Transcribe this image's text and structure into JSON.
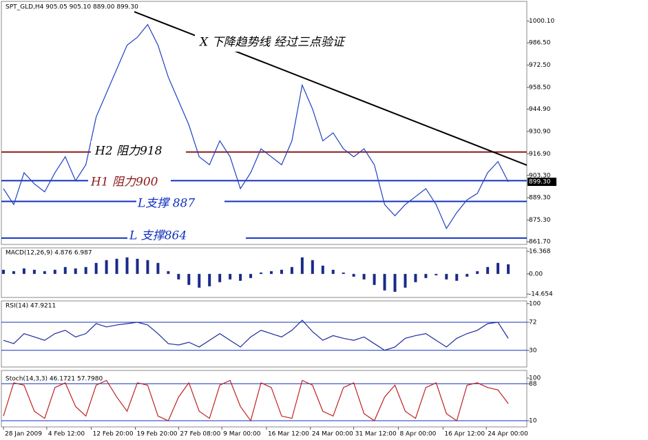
{
  "chart_data": [
    {
      "type": "line",
      "title": "SPT_GLD,H4  905.05 905.10 889.00 899.30",
      "x": [
        0,
        1,
        2,
        3,
        4,
        5,
        6,
        7,
        8,
        9,
        10,
        11,
        12,
        13,
        14,
        15,
        16,
        17,
        18,
        19,
        20,
        21,
        22,
        23,
        24,
        25,
        26,
        27,
        28,
        29,
        30,
        31,
        32,
        33,
        34,
        35,
        36,
        37,
        38,
        39,
        40,
        41,
        42,
        43,
        44,
        45,
        46,
        47,
        48,
        49
      ],
      "series": [
        {
          "color": "#2040c0",
          "values": [
            895,
            885,
            905,
            898,
            893,
            905,
            915,
            900,
            910,
            940,
            955,
            970,
            985,
            990,
            998,
            985,
            965,
            950,
            935,
            915,
            910,
            925,
            915,
            895,
            905,
            920,
            915,
            910,
            925,
            960,
            945,
            925,
            930,
            920,
            915,
            920,
            910,
            885,
            878,
            885,
            890,
            895,
            885,
            870,
            880,
            888,
            892,
            905,
            912,
            899.3
          ]
        }
      ],
      "xlim": [
        -0.2,
        50.8
      ],
      "ylim": [
        860,
        1012.5
      ],
      "yticks": [
        {
          "value": 1000.1,
          "label": "1000.10"
        },
        {
          "value": 986.5,
          "label": "986.50"
        },
        {
          "value": 972.5,
          "label": "972.50"
        },
        {
          "value": 958.5,
          "label": "958.50"
        },
        {
          "value": 944.9,
          "label": "944.90"
        },
        {
          "value": 930.9,
          "label": "930.90"
        },
        {
          "value": 916.9,
          "label": "916.90"
        },
        {
          "value": 903.3,
          "label": "903.30"
        },
        {
          "value": 889.3,
          "label": "889.30"
        },
        {
          "value": 875.3,
          "label": "875.30"
        },
        {
          "value": 861.7,
          "label": "861.70"
        }
      ],
      "xticks": [
        {
          "value": 0,
          "label": "28 Jan 2009"
        },
        {
          "value": 4.2,
          "label": "4 Feb 12:00"
        },
        {
          "value": 8.53,
          "label": "12 Feb 20:00"
        },
        {
          "value": 12.8,
          "label": "19 Feb 20:00"
        },
        {
          "value": 17,
          "label": "27 Feb 08:00"
        },
        {
          "value": 21.2,
          "label": "9 Mar 00:00"
        },
        {
          "value": 25.53,
          "label": "16 Mar 12:00"
        },
        {
          "value": 29.8,
          "label": "24 Mar 00:00"
        },
        {
          "value": 34,
          "label": "31 Mar 12:00"
        },
        {
          "value": 38.33,
          "label": "8 Apr 00:00"
        },
        {
          "value": 42.67,
          "label": "16 Apr 12:00"
        },
        {
          "value": 46.87,
          "label": "24 Apr 00:00"
        }
      ],
      "last_price": {
        "value": 899.3,
        "label": "899.30"
      },
      "levels": [
        {
          "value": 918,
          "color": "#8b1a1a"
        },
        {
          "value": 900,
          "color": "#1030c0"
        },
        {
          "value": 887,
          "color": "#1030c0"
        },
        {
          "value": 864,
          "color": "#1030c0"
        }
      ],
      "trendline": {
        "x": [
          12.7,
          51.5
        ],
        "y": [
          1006,
          908
        ],
        "color": "#000000"
      },
      "annotations": [
        "X  下降趋势线  经过三点验证",
        "H2  阻力918",
        "H1  阻力900",
        "L支撑  887",
        "L  支撑864"
      ]
    },
    {
      "type": "bar",
      "title": "MACD(12,26,9) 4.876 6.987",
      "color": "#1a2a8a",
      "values": [
        3,
        2,
        4,
        3,
        2,
        3,
        5,
        4,
        5,
        8,
        10,
        11,
        12,
        11,
        10,
        8,
        2,
        -4,
        -8,
        -10,
        -9,
        -6,
        -4,
        -5,
        -3,
        1,
        2,
        3,
        5,
        12,
        10,
        6,
        3,
        1,
        -2,
        -4,
        -8,
        -12,
        -13,
        -10,
        -6,
        -3,
        -1,
        -4,
        -5,
        -2,
        2,
        5,
        8,
        7
      ],
      "ylim": [
        -17.1,
        18.9
      ],
      "yticks": [
        {
          "value": 16.368,
          "label": "16.368"
        },
        {
          "value": 0,
          "label": "0.00"
        },
        {
          "value": -14.654,
          "label": "-14.654"
        }
      ]
    },
    {
      "type": "line",
      "title": "RSI(14) 47.9211",
      "color": "#1a2a9a",
      "values": [
        45,
        40,
        55,
        50,
        45,
        55,
        60,
        50,
        55,
        70,
        65,
        68,
        70,
        72,
        68,
        55,
        40,
        38,
        42,
        35,
        45,
        55,
        45,
        35,
        50,
        60,
        55,
        50,
        60,
        75,
        58,
        45,
        52,
        48,
        45,
        50,
        40,
        30,
        35,
        48,
        52,
        55,
        45,
        35,
        48,
        55,
        60,
        70,
        72,
        47.9211
      ],
      "ylim": [
        5,
        104
      ],
      "yticks": [
        100,
        72,
        30
      ],
      "levels": [
        72,
        30
      ]
    },
    {
      "type": "line",
      "title": "Stoch(14,3,3) 46.1721 57.7980",
      "color": "#c02020",
      "values": [
        20,
        90,
        85,
        30,
        15,
        80,
        90,
        40,
        20,
        85,
        95,
        60,
        30,
        90,
        85,
        20,
        10,
        60,
        90,
        30,
        15,
        85,
        95,
        40,
        10,
        90,
        80,
        20,
        15,
        95,
        85,
        30,
        20,
        80,
        90,
        25,
        10,
        60,
        85,
        30,
        15,
        80,
        90,
        25,
        10,
        85,
        90,
        80,
        75,
        46.1721
      ],
      "ylim": [
        -3,
        116
      ],
      "yticks": [
        100,
        88,
        10
      ],
      "levels": [
        88,
        10
      ]
    }
  ]
}
